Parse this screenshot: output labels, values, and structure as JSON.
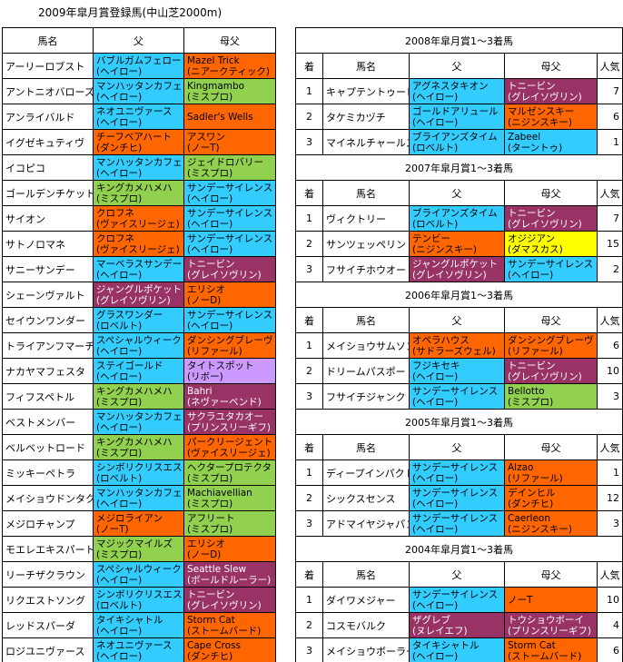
{
  "title": "2009年皐月賞登録馬(中山芝2000m)",
  "left": {
    "headers": [
      "馬名",
      "父",
      "母父"
    ],
    "rows": [
      {
        "horse": "アーリーロブスト",
        "sire": {
          "name": "バブルガムフェロー",
          "line": "(ヘイロー)",
          "color": "#33ccff"
        },
        "dam_sire": {
          "name": "Mazel Trick",
          "line": "(ニアークティック)",
          "color": "#ff6600"
        }
      },
      {
        "horse": "アントニオバローズ",
        "sire": {
          "name": "マンハッタンカフェ",
          "line": "(ヘイロー)",
          "color": "#33ccff"
        },
        "dam_sire": {
          "name": "Kingmambo",
          "line": "(ミスプロ)",
          "color": "#92d050"
        }
      },
      {
        "horse": "アンライバルド",
        "sire": {
          "name": "ネオユニヴァース",
          "line": "(ヘイロー)",
          "color": "#33ccff"
        },
        "dam_sire": {
          "name": "Sadler's Wells",
          "color": "#ff6600"
        }
      },
      {
        "horse": "イグゼキュティヴ",
        "sire": {
          "name": "チーフベアハート",
          "line": "(ダンチヒ)",
          "color": "#ff6600"
        },
        "dam_sire": {
          "name": "アスワン",
          "line": "(ノーT)",
          "color": "#ff6600"
        }
      },
      {
        "horse": "イコピコ",
        "sire": {
          "name": "マンハッタンカフェ",
          "line": "(ヘイロー)",
          "color": "#33ccff"
        },
        "dam_sire": {
          "name": "ジェイドロバリー",
          "line": "(ミスプロ)",
          "color": "#92d050"
        }
      },
      {
        "horse": "ゴールデンチケット",
        "sire": {
          "name": "キングカメハメハ",
          "line": "(ミスプロ)",
          "color": "#92d050"
        },
        "dam_sire": {
          "name": "サンデーサイレンス",
          "line": "(ヘイロー)",
          "color": "#33ccff"
        }
      },
      {
        "horse": "サイオン",
        "sire": {
          "name": "クロフネ",
          "line": "(ヴァイスリージェ)",
          "color": "#ff6600"
        },
        "dam_sire": {
          "name": "サンデーサイレンス",
          "line": "(ヘイロー)",
          "color": "#33ccff"
        }
      },
      {
        "horse": "サトノロマネ",
        "sire": {
          "name": "クロフネ",
          "line": "(ヴァイスリージェ)",
          "color": "#ff6600"
        },
        "dam_sire": {
          "name": "サンデーサイレンス",
          "line": "(ヘイロー)",
          "color": "#33ccff"
        }
      },
      {
        "horse": "サニーサンデー",
        "sire": {
          "name": "マーベラスサンデー",
          "line": "(ヘイロー)",
          "color": "#33ccff"
        },
        "dam_sire": {
          "name": "トニービン",
          "line": "(グレイソヴリン)",
          "color": "#993366"
        }
      },
      {
        "horse": "シェーンヴァルト",
        "sire": {
          "name": "ジャングルポケット",
          "line": "(グレイソヴリン)",
          "color": "#993366"
        },
        "dam_sire": {
          "name": "エリシオ",
          "line": "(ノーD)",
          "color": "#ff6600"
        }
      },
      {
        "horse": "セイウンワンダー",
        "sire": {
          "name": "グラスワンダー",
          "line": "(ロベルト)",
          "color": "#33ccff"
        },
        "dam_sire": {
          "name": "サンデーサイレンス",
          "line": "(ヘイロー)",
          "color": "#33ccff"
        }
      },
      {
        "horse": "トライアンフマーチ",
        "sire": {
          "name": "スペシャルウィーク",
          "line": "(ヘイロー)",
          "color": "#33ccff"
        },
        "dam_sire": {
          "name": "ダンシングブレーヴ",
          "line": "(リファール)",
          "color": "#ff6600"
        }
      },
      {
        "horse": "ナカヤマフェスタ",
        "sire": {
          "name": "ステイゴールド",
          "line": "(ヘイロー)",
          "color": "#33ccff"
        },
        "dam_sire": {
          "name": "タイトスポット",
          "line": "(リボー)",
          "color": "#cc99ff"
        }
      },
      {
        "horse": "フィフスペトル",
        "sire": {
          "name": "キングカメハメハ",
          "line": "(ミスプロ)",
          "color": "#92d050"
        },
        "dam_sire": {
          "name": "Bahri",
          "line": "(ネヴァーベンド)",
          "color": "#993366"
        }
      },
      {
        "horse": "ベストメンバー",
        "sire": {
          "name": "マンハッタンカフェ",
          "line": "(ヘイロー)",
          "color": "#33ccff"
        },
        "dam_sire": {
          "name": "サクラユタカオー",
          "line": "(プリンスリーギフ)",
          "color": "#993366"
        }
      },
      {
        "horse": "ベルベットロード",
        "sire": {
          "name": "キングカメハメハ",
          "line": "(ミスプロ)",
          "color": "#92d050"
        },
        "dam_sire": {
          "name": "パークリージェント",
          "line": "(ヴァイスリージェ)",
          "color": "#ff6600"
        }
      },
      {
        "horse": "ミッキーペトラ",
        "sire": {
          "name": "シンボリクリスエス",
          "line": "(ロベルト)",
          "color": "#33ccff"
        },
        "dam_sire": {
          "name": "ヘクタープロテクタ",
          "line": "(ミスプロ)",
          "color": "#92d050"
        }
      },
      {
        "horse": "メイショウドンタク",
        "sire": {
          "name": "マンハッタンカフェ",
          "line": "(ヘイロー)",
          "color": "#33ccff"
        },
        "dam_sire": {
          "name": "Machiavellian",
          "line": "(ミスプロ)",
          "color": "#92d050"
        }
      },
      {
        "horse": "メジロチャンプ",
        "sire": {
          "name": "メジロライアン",
          "line": "(ノーT)",
          "color": "#ff6600"
        },
        "dam_sire": {
          "name": "アフリート",
          "line": "(ミスプロ)",
          "color": "#92d050"
        }
      },
      {
        "horse": "モエレエキスパート",
        "sire": {
          "name": "マジックマイルズ",
          "line": "(ミスプロ)",
          "color": "#92d050"
        },
        "dam_sire": {
          "name": "エリシオ",
          "line": "(ノーD)",
          "color": "#ff6600"
        }
      },
      {
        "horse": "リーチザクラウン",
        "sire": {
          "name": "スペシャルウィーク",
          "line": "(ヘイロー)",
          "color": "#33ccff"
        },
        "dam_sire": {
          "name": "Seattle Slew",
          "line": "(ボールドルーラー)",
          "color": "#993366"
        }
      },
      {
        "horse": "リクエストソング",
        "sire": {
          "name": "シンボリクリスエス",
          "line": "(ロベルト)",
          "color": "#33ccff"
        },
        "dam_sire": {
          "name": "トニービン",
          "line": "(グレイソヴリン)",
          "color": "#993366"
        }
      },
      {
        "horse": "レッドスパーダ",
        "sire": {
          "name": "タイキシャトル",
          "line": "(ヘイロー)",
          "color": "#33ccff"
        },
        "dam_sire": {
          "name": "Storm Cat",
          "line": "(ストームバード)",
          "color": "#ff6600"
        }
      },
      {
        "horse": "ロジユニヴァース",
        "sire": {
          "name": "ネオユニヴァース",
          "line": "(ヘイロー)",
          "color": "#33ccff"
        },
        "dam_sire": {
          "name": "Cape Cross",
          "line": "(ダンチヒ)",
          "color": "#ff6600"
        }
      }
    ]
  },
  "right": {
    "headers": [
      "着",
      "馬名",
      "父",
      "母父",
      "人気"
    ],
    "sections": [
      {
        "title": "2008年皐月賞1～3着馬",
        "rows": [
          {
            "rank": 1,
            "horse": "キャプテントゥーレ",
            "sire": {
              "name": "アグネスタキオン",
              "line": "(ヘイロー)",
              "color": "#33ccff"
            },
            "dam_sire": {
              "name": "トニービン",
              "line": "(グレイソヴリン)",
              "color": "#993366"
            },
            "popularity": 7
          },
          {
            "rank": 2,
            "horse": "タケミカヅチ",
            "sire": {
              "name": "ゴールドアリュール",
              "line": "(ヘイロー)",
              "color": "#33ccff"
            },
            "dam_sire": {
              "name": "マルゼンスキー",
              "line": "(ニジンスキー)",
              "color": "#ff6600"
            },
            "popularity": 6
          },
          {
            "rank": 3,
            "horse": "マイネルチャールズ",
            "sire": {
              "name": "ブライアンズタイム",
              "line": "(ロベルト)",
              "color": "#33ccff"
            },
            "dam_sire": {
              "name": "Zabeel",
              "line": "(ターントゥ)",
              "color": "#33ccff"
            },
            "popularity": 1
          }
        ]
      },
      {
        "title": "2007年皐月賞1～3着馬",
        "rows": [
          {
            "rank": 1,
            "horse": "ヴィクトリー",
            "sire": {
              "name": "ブライアンズタイム",
              "line": "(ロベルト)",
              "color": "#33ccff"
            },
            "dam_sire": {
              "name": "トニービン",
              "line": "(グレイソヴリン)",
              "color": "#993366"
            },
            "popularity": 7
          },
          {
            "rank": 2,
            "horse": "サンツェッペリン",
            "sire": {
              "name": "テンビー",
              "line": "(ニジンスキー)",
              "color": "#ff6600"
            },
            "dam_sire": {
              "name": "オジジアン",
              "line": "(ダマスカス)",
              "color": "#ffff00"
            },
            "popularity": 15
          },
          {
            "rank": 3,
            "horse": "フサイチホウオー",
            "sire": {
              "name": "ジャングルポケット",
              "line": "(グレイソヴリン)",
              "color": "#993366"
            },
            "dam_sire": {
              "name": "サンデーサイレンス",
              "line": "(ヘイロー)",
              "color": "#33ccff"
            },
            "popularity": 2
          }
        ]
      },
      {
        "title": "2006年皐月賞1～3着馬",
        "rows": [
          {
            "rank": 1,
            "horse": "メイショウサムソン",
            "sire": {
              "name": "オペラハウス",
              "line": "(サドラーズウェル)",
              "color": "#ff6600"
            },
            "dam_sire": {
              "name": "ダンシングブレーヴ",
              "line": "(リファール)",
              "color": "#ff6600"
            },
            "popularity": 6
          },
          {
            "rank": 2,
            "horse": "ドリームパスポート",
            "sire": {
              "name": "フジキセキ",
              "line": "(ヘイロー)",
              "color": "#33ccff"
            },
            "dam_sire": {
              "name": "トニービン",
              "line": "(グレイソヴリン)",
              "color": "#993366"
            },
            "popularity": 10
          },
          {
            "rank": 3,
            "horse": "フサイチジャンク",
            "sire": {
              "name": "サンデーサイレンス",
              "line": "(ヘイロー)",
              "color": "#33ccff"
            },
            "dam_sire": {
              "name": "Bellotto",
              "line": "(ミスプロ)",
              "color": "#92d050"
            },
            "popularity": 3
          }
        ]
      },
      {
        "title": "2005年皐月賞1～3着馬",
        "rows": [
          {
            "rank": 1,
            "horse": "ディープインパクト",
            "sire": {
              "name": "サンデーサイレンス",
              "line": "(ヘイロー)",
              "color": "#33ccff"
            },
            "dam_sire": {
              "name": "Alzao",
              "line": "(リファール)",
              "color": "#ff6600"
            },
            "popularity": 1
          },
          {
            "rank": 2,
            "horse": "シックスセンス",
            "sire": {
              "name": "サンデーサイレンス",
              "line": "(ヘイロー)",
              "color": "#33ccff"
            },
            "dam_sire": {
              "name": "デインヒル",
              "line": "(ダンチヒ)",
              "color": "#ff6600"
            },
            "popularity": 12
          },
          {
            "rank": 3,
            "horse": "アドマイヤジャパン",
            "sire": {
              "name": "サンデーサイレンス",
              "line": "(ヘイロー)",
              "color": "#33ccff"
            },
            "dam_sire": {
              "name": "Caerleon",
              "line": "(ニジンスキー)",
              "color": "#ff6600"
            },
            "popularity": 3
          }
        ]
      },
      {
        "title": "2004年皐月賞1～3着馬",
        "rows": [
          {
            "rank": 1,
            "horse": "ダイワメジャー",
            "sire": {
              "name": "サンデーサイレンス",
              "line": "(ヘイロー)",
              "color": "#33ccff"
            },
            "dam_sire": {
              "name": "ノーT",
              "color": "#ff6600"
            },
            "popularity": 10
          },
          {
            "rank": 2,
            "horse": "コスモバルク",
            "sire": {
              "name": "ザグレブ",
              "line": "(ヌレイエフ)",
              "color": "#993366"
            },
            "dam_sire": {
              "name": "トウショウボーイ",
              "line": "(プリンスリーギフ)",
              "color": "#993366"
            },
            "popularity": 4
          },
          {
            "rank": 3,
            "horse": "メイショウボーラー",
            "sire": {
              "name": "タイキシャトル",
              "line": "(ヘイロー)",
              "color": "#33ccff"
            },
            "dam_sire": {
              "name": "Storm Cat",
              "line": "(ストームバード)",
              "color": "#ff6600"
            },
            "popularity": 6
          }
        ]
      }
    ]
  }
}
